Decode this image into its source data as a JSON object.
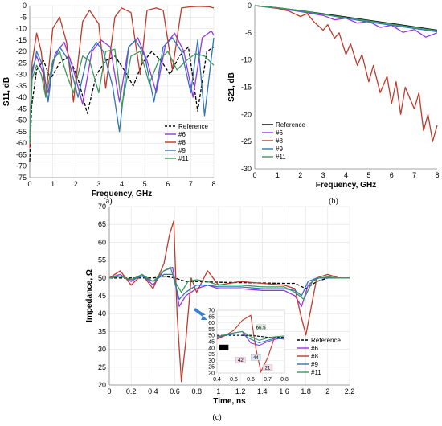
{
  "chart_data": [
    {
      "type": "line",
      "caption": "(a)",
      "xlabel": "Frequency, GHz",
      "ylabel": "S11, dB",
      "xlim": [
        0,
        8
      ],
      "ylim": [
        -75,
        0
      ],
      "xticks": [
        "0",
        "1",
        "2",
        "3",
        "4",
        "5",
        "6",
        "7",
        "8"
      ],
      "yticks": [
        "0",
        "-5",
        "-10",
        "-15",
        "-20",
        "-25",
        "-30",
        "-35",
        "-40",
        "-45",
        "-50",
        "-55",
        "-60",
        "-65",
        "-70",
        "-75"
      ],
      "grid": true,
      "legend_position": "bottom-right",
      "series": [
        {
          "name": "Reference",
          "color": "#000000",
          "dash": true,
          "x": [
            0,
            0.08,
            0.3,
            0.6,
            0.9,
            1.3,
            1.7,
            2.1,
            2.5,
            2.9,
            3.3,
            3.7,
            4.1,
            4.5,
            4.9,
            5.3,
            5.7,
            6.1,
            6.5,
            6.9,
            7.3,
            7.7,
            8
          ],
          "y": [
            -68,
            -44,
            -28,
            -24,
            -32,
            -25,
            -22,
            -32,
            -47,
            -30,
            -24,
            -22,
            -28,
            -35,
            -25,
            -20,
            -24,
            -30,
            -22,
            -18,
            -46,
            -20,
            -18
          ]
        },
        {
          "name": "#6",
          "color": "#9933ee",
          "x": [
            0,
            0.1,
            0.3,
            0.6,
            0.8,
            1.1,
            1.5,
            1.9,
            2.3,
            2.7,
            3.1,
            3.5,
            3.9,
            4.3,
            4.7,
            5.1,
            5.5,
            5.9,
            6.3,
            6.7,
            7.1,
            7.5,
            7.9,
            8
          ],
          "y": [
            -60,
            -28,
            -22,
            -30,
            -38,
            -21,
            -16,
            -28,
            -43,
            -20,
            -15,
            -18,
            -42,
            -18,
            -14,
            -24,
            -38,
            -17,
            -12,
            -20,
            -40,
            -14,
            -11,
            -13
          ]
        },
        {
          "name": "#8",
          "color": "#c0392b",
          "x": [
            0,
            0.1,
            0.3,
            0.5,
            0.7,
            1.0,
            1.3,
            1.6,
            1.9,
            2.3,
            2.6,
            3.0,
            3.3,
            3.7,
            4.0,
            4.4,
            4.8,
            5.1,
            5.5,
            5.8,
            6.2,
            6.6,
            7.0,
            7.4,
            7.8,
            8
          ],
          "y": [
            -62,
            -25,
            -12,
            -20,
            -40,
            -10,
            -5,
            -16,
            -42,
            -7,
            -2,
            -8,
            -36,
            -5,
            -1,
            -3,
            -30,
            -2,
            -1,
            -2,
            -28,
            -1,
            -0.5,
            -0.3,
            -0.5,
            -1
          ]
        },
        {
          "name": "#9",
          "color": "#2e75b6",
          "x": [
            0,
            0.1,
            0.3,
            0.6,
            0.8,
            1.0,
            1.3,
            1.7,
            2.1,
            2.5,
            2.9,
            3.2,
            3.6,
            3.9,
            4.3,
            4.6,
            5.0,
            5.4,
            5.8,
            6.2,
            6.6,
            7.0,
            7.3,
            7.6,
            8
          ],
          "y": [
            -58,
            -30,
            -20,
            -27,
            -42,
            -25,
            -18,
            -24,
            -40,
            -22,
            -16,
            -20,
            -35,
            -55,
            -18,
            -15,
            -22,
            -42,
            -18,
            -14,
            -20,
            -38,
            -15,
            -48,
            -14
          ]
        },
        {
          "name": "#11",
          "color": "#3a9a5b",
          "x": [
            0,
            0.1,
            0.3,
            0.5,
            0.7,
            1.0,
            1.3,
            1.6,
            1.9,
            2.3,
            2.6,
            3.0,
            3.3,
            3.7,
            4.0,
            4.4,
            4.8,
            5.2,
            5.6,
            6.0,
            6.4,
            6.8,
            7.2,
            7.6,
            8
          ],
          "y": [
            -60,
            -32,
            -26,
            -30,
            -40,
            -24,
            -20,
            -30,
            -38,
            -22,
            -24,
            -38,
            -20,
            -19,
            -44,
            -22,
            -20,
            -34,
            -24,
            -20,
            -28,
            -24,
            -21,
            -22,
            -26
          ]
        }
      ]
    },
    {
      "type": "line",
      "caption": "(b)",
      "xlabel": "Frequency, GHz",
      "ylabel": "S21, dB",
      "xlim": [
        0,
        8
      ],
      "ylim": [
        -30,
        0
      ],
      "xticks": [
        "0",
        "1",
        "2",
        "3",
        "4",
        "5",
        "6",
        "7",
        "8"
      ],
      "yticks": [
        "0",
        "-5",
        "-10",
        "-15",
        "-20",
        "-25",
        "-30"
      ],
      "grid": false,
      "legend_position": "bottom-left",
      "series": [
        {
          "name": "Reference",
          "color": "#000000",
          "x": [
            0,
            1,
            2,
            3,
            4,
            5,
            6,
            7,
            8
          ],
          "y": [
            0,
            -0.4,
            -0.9,
            -1.5,
            -2.1,
            -2.7,
            -3.3,
            -3.9,
            -4.5
          ]
        },
        {
          "name": "#6",
          "color": "#9933ee",
          "x": [
            0,
            1,
            2,
            3,
            3.5,
            4,
            4.5,
            5,
            5.5,
            6,
            6.5,
            7,
            7.5,
            8
          ],
          "y": [
            0,
            -0.5,
            -1.1,
            -1.8,
            -2.6,
            -2.3,
            -3.2,
            -2.9,
            -4,
            -3.6,
            -4.9,
            -4.4,
            -5.8,
            -5
          ]
        },
        {
          "name": "#8",
          "color": "#c0392b",
          "x": [
            0,
            1,
            1.5,
            2,
            2.3,
            2.6,
            3,
            3.2,
            3.5,
            3.7,
            4,
            4.2,
            4.5,
            4.7,
            5,
            5.2,
            5.5,
            5.8,
            6,
            6.2,
            6.4,
            6.6,
            6.8,
            7,
            7.2,
            7.4,
            7.6,
            7.8,
            8
          ],
          "y": [
            0,
            -0.5,
            -1,
            -2,
            -1.5,
            -3,
            -4.5,
            -3.5,
            -6,
            -5,
            -9,
            -7,
            -11,
            -9,
            -14,
            -11,
            -16,
            -13,
            -18,
            -14,
            -20,
            -15,
            -17,
            -19,
            -16,
            -23,
            -20,
            -25,
            -22
          ]
        },
        {
          "name": "#9",
          "color": "#2e75b6",
          "x": [
            0,
            1,
            2,
            3,
            4,
            5,
            6,
            7,
            8
          ],
          "y": [
            0,
            -0.4,
            -1,
            -1.6,
            -2.3,
            -3,
            -3.6,
            -4.2,
            -4.8
          ]
        },
        {
          "name": "#11",
          "color": "#3a9a5b",
          "x": [
            0,
            1,
            2,
            3,
            4,
            5,
            6,
            7,
            8
          ],
          "y": [
            0,
            -0.4,
            -0.9,
            -1.6,
            -2.2,
            -2.8,
            -3.4,
            -4,
            -4.6
          ]
        }
      ]
    },
    {
      "type": "line",
      "caption": "(c)",
      "xlabel": "Time, ns",
      "ylabel": "Impedance, Ω",
      "xlim": [
        0,
        2.2
      ],
      "ylim": [
        20,
        70
      ],
      "xticks": [
        "0",
        "0.2",
        "0.4",
        "0.6",
        "0.8",
        "1",
        "1.2",
        "1.4",
        "1.6",
        "1.8",
        "2",
        "2.2"
      ],
      "yticks": [
        "20",
        "25",
        "30",
        "35",
        "40",
        "45",
        "50",
        "55",
        "60",
        "65",
        "70"
      ],
      "grid": true,
      "legend_position": "bottom-right",
      "series": [
        {
          "name": "Reference",
          "color": "#000000",
          "dash": true,
          "x": [
            0,
            0.2,
            0.4,
            0.5,
            0.6,
            0.7,
            0.8,
            1.0,
            1.2,
            1.4,
            1.6,
            1.7,
            1.8,
            1.9,
            2.0,
            2.2
          ],
          "y": [
            50,
            50,
            50,
            50.5,
            50,
            49,
            49,
            48.8,
            48.7,
            48.6,
            48.5,
            48.5,
            47,
            49,
            50,
            50
          ]
        },
        {
          "name": "#6",
          "color": "#9933ee",
          "x": [
            0,
            0.1,
            0.2,
            0.3,
            0.4,
            0.5,
            0.58,
            0.64,
            0.7,
            0.8,
            0.9,
            1.0,
            1.2,
            1.4,
            1.6,
            1.7,
            1.76,
            1.82,
            1.9,
            2.0,
            2.2
          ],
          "y": [
            50,
            51,
            49,
            51,
            48,
            52,
            53,
            42,
            45,
            47,
            48,
            47,
            47,
            46.5,
            46.5,
            45,
            42,
            48,
            50,
            50,
            50
          ]
        },
        {
          "name": "#8",
          "color": "#c0392b",
          "x": [
            0,
            0.1,
            0.2,
            0.3,
            0.4,
            0.5,
            0.55,
            0.59,
            0.62,
            0.66,
            0.7,
            0.75,
            0.8,
            0.9,
            1.0,
            1.2,
            1.4,
            1.6,
            1.7,
            1.75,
            1.8,
            1.85,
            1.9,
            2.0,
            2.1,
            2.2
          ],
          "y": [
            50,
            52,
            48,
            51,
            47,
            54,
            62,
            66,
            40,
            21,
            32,
            50,
            46,
            52,
            48,
            49,
            48.5,
            48,
            47,
            40,
            34,
            42,
            50,
            51,
            50,
            50
          ]
        },
        {
          "name": "#9",
          "color": "#2e75b6",
          "x": [
            0,
            0.1,
            0.2,
            0.3,
            0.4,
            0.5,
            0.58,
            0.64,
            0.7,
            0.8,
            0.9,
            1.0,
            1.2,
            1.4,
            1.6,
            1.7,
            1.76,
            1.82,
            1.9,
            2.0,
            2.2
          ],
          "y": [
            50,
            50.5,
            49.5,
            50.5,
            49,
            51,
            51,
            44,
            46,
            48,
            48,
            47.5,
            47.5,
            47,
            47,
            46.5,
            45,
            49,
            50,
            50,
            50
          ]
        },
        {
          "name": "#11",
          "color": "#3a9a5b",
          "x": [
            0,
            0.1,
            0.2,
            0.3,
            0.4,
            0.5,
            0.56,
            0.6,
            0.66,
            0.72,
            0.8,
            0.9,
            1.0,
            1.2,
            1.4,
            1.6,
            1.7,
            1.78,
            1.86,
            1.95,
            2.1,
            2.2
          ],
          "y": [
            50,
            50.5,
            49.5,
            51,
            49,
            52,
            53,
            49,
            46,
            49,
            49.5,
            49,
            48,
            48,
            47.5,
            47.5,
            46,
            44,
            49,
            50.5,
            50,
            50
          ]
        }
      ],
      "inset": {
        "xlim": [
          0.4,
          0.8
        ],
        "ylim": [
          20,
          70
        ],
        "xticks": [
          "0.4",
          "0.5",
          "0.6",
          "0.7",
          "0.8"
        ],
        "yticks": [
          "20",
          "25",
          "30",
          "35",
          "40",
          "45",
          "50",
          "55",
          "60",
          "65",
          "70"
        ],
        "annotations": [
          {
            "text": "66.5",
            "x": 0.66,
            "y": 56,
            "fill": "#d8efdf"
          },
          {
            "text": "44",
            "x": 0.44,
            "y": 40,
            "fill": "#000000",
            "textColor": "#ffffff"
          },
          {
            "text": "42",
            "x": 0.54,
            "y": 30,
            "fill": "#f6dcea"
          },
          {
            "text": "44",
            "x": 0.63,
            "y": 32,
            "fill": "#dde6f4"
          },
          {
            "text": "21",
            "x": 0.7,
            "y": 24,
            "fill": "#f6dcea"
          }
        ],
        "series": [
          {
            "name": "Reference",
            "color": "#000000",
            "dash": true,
            "x": [
              0.4,
              0.5,
              0.6,
              0.7,
              0.8
            ],
            "y": [
              50,
              50,
              50,
              48.5,
              48.5
            ]
          },
          {
            "name": "#6",
            "color": "#9933ee",
            "x": [
              0.4,
              0.45,
              0.5,
              0.55,
              0.6,
              0.65,
              0.7,
              0.75,
              0.8
            ],
            "y": [
              48,
              50,
              52,
              53,
              44,
              42,
              45,
              47,
              48
            ]
          },
          {
            "name": "#8",
            "color": "#c0392b",
            "x": [
              0.4,
              0.45,
              0.5,
              0.55,
              0.6,
              0.63,
              0.66,
              0.7,
              0.74,
              0.8
            ],
            "y": [
              47,
              50,
              54,
              62,
              66,
              40,
              21,
              32,
              48,
              47
            ]
          },
          {
            "name": "#9",
            "color": "#2e75b6",
            "x": [
              0.4,
              0.45,
              0.5,
              0.55,
              0.6,
              0.65,
              0.7,
              0.75,
              0.8
            ],
            "y": [
              49,
              50,
              51,
              51,
              47,
              44,
              46,
              48,
              48
            ]
          },
          {
            "name": "#11",
            "color": "#3a9a5b",
            "x": [
              0.4,
              0.45,
              0.5,
              0.55,
              0.6,
              0.65,
              0.7,
              0.75,
              0.8
            ],
            "y": [
              49,
              50.5,
              52,
              53,
              49,
              46,
              48,
              49,
              49.5
            ]
          }
        ]
      }
    }
  ]
}
